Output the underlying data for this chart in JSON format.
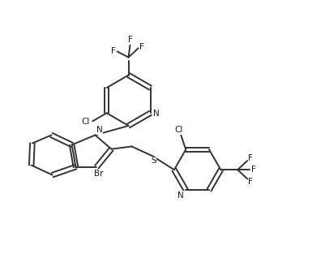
{
  "background_color": "#ffffff",
  "line_color": "#333333",
  "text_color": "#1a1a2e",
  "linewidth": 1.4,
  "figsize": [
    4.01,
    3.13
  ],
  "dpi": 100,
  "xlim": [
    0,
    10
  ],
  "ylim": [
    0,
    7.8
  ]
}
